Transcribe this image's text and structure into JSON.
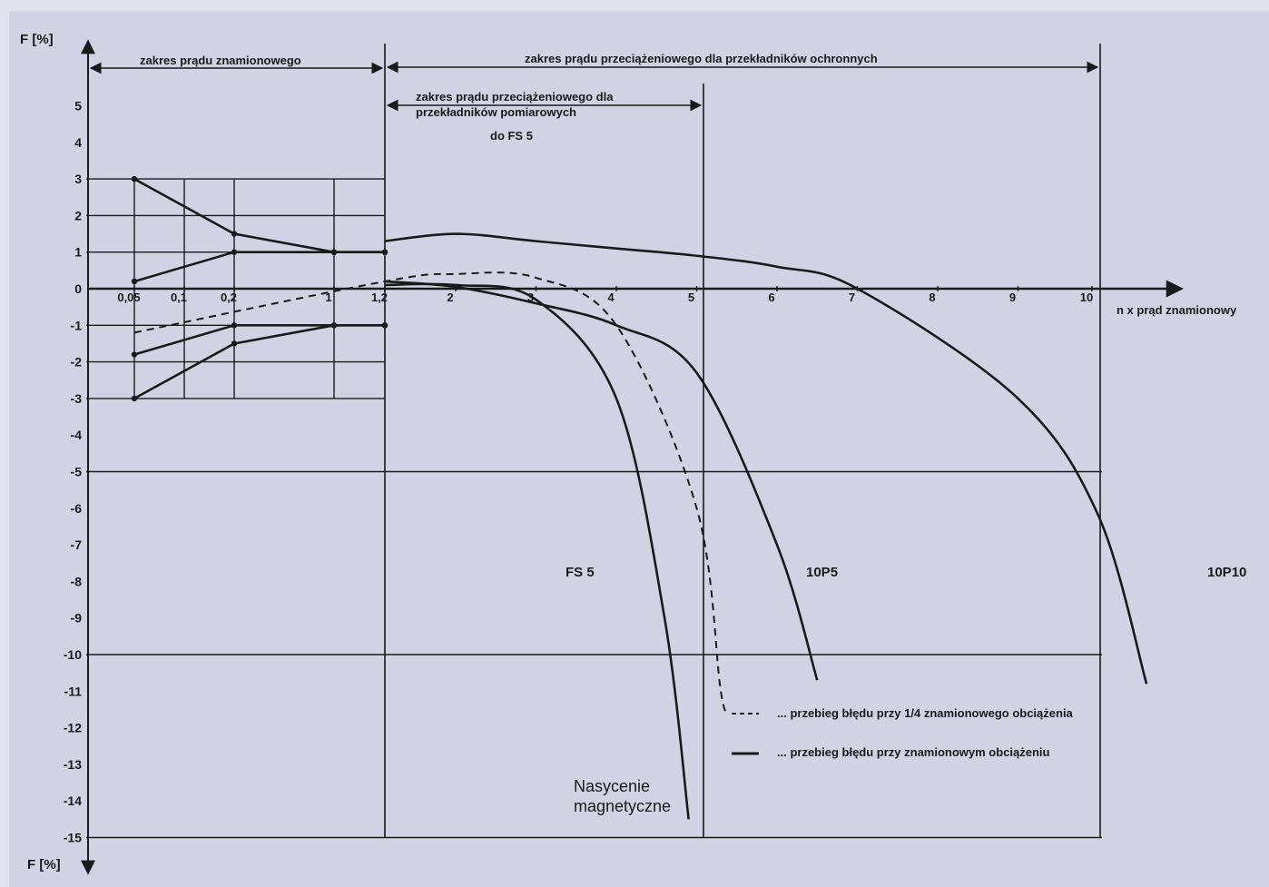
{
  "chart_data": {
    "type": "line",
    "y_axis_label_top": "F [%]",
    "y_axis_label_bottom": "F [%]",
    "x_axis_label": "n x prąd znamionowy",
    "y_ticks": [
      "5",
      "4",
      "3",
      "2",
      "1",
      "0",
      "-1",
      "-2",
      "-3",
      "-4",
      "-5",
      "-6",
      "-7",
      "-8",
      "-9",
      "-10",
      "-11",
      "-12",
      "-13",
      "-14",
      "-15"
    ],
    "x_ticks": [
      "0,05",
      "0,1",
      "0,2",
      "1",
      "1,2",
      "2",
      "3",
      "4",
      "5",
      "6",
      "7",
      "8",
      "9",
      "10"
    ],
    "ranges": {
      "rated": "zakres prądu znamionowego",
      "overload_protective": "zakres prądu przeciążeniowego dla przekładników ochronnych",
      "overload_measuring_line1": "zakres prądu przeciążeniowego dla",
      "overload_measuring_line2": "przekładników pomiarowych",
      "fs5_note": "do FS 5"
    },
    "class_labels": [
      "FS 5",
      "10P5",
      "10P10"
    ],
    "annotation_line1": "Nasycenie",
    "annotation_line2": "magnetyczne",
    "legend": [
      {
        "style": "dashed",
        "label": "... przebieg błędu przy 1/4 znamionowego obciążenia"
      },
      {
        "style": "solid",
        "label": "... przebieg błędu przy znamionowym obciążeniu"
      }
    ],
    "limit_lines_y": [
      3,
      2,
      1,
      -1,
      -2,
      -3,
      -5,
      -10,
      -15
    ],
    "series": [
      {
        "style": "solid",
        "points": [
          [
            0.05,
            3
          ],
          [
            0.2,
            1.5
          ],
          [
            1,
            1
          ],
          [
            1.2,
            1
          ]
        ]
      },
      {
        "style": "solid",
        "points": [
          [
            0.05,
            0.2
          ],
          [
            0.2,
            1
          ],
          [
            1,
            1
          ],
          [
            1.2,
            1
          ]
        ]
      },
      {
        "style": "solid",
        "points": [
          [
            0.05,
            -1.8
          ],
          [
            0.2,
            -1
          ],
          [
            1,
            -1
          ],
          [
            1.2,
            -1
          ]
        ]
      },
      {
        "style": "solid",
        "points": [
          [
            0.05,
            -3
          ],
          [
            0.2,
            -1.5
          ],
          [
            1,
            -1
          ],
          [
            1.2,
            -1
          ]
        ]
      },
      {
        "style": "dashed",
        "points": [
          [
            0.05,
            -1.2
          ],
          [
            1.2,
            0.2
          ],
          [
            2,
            0.4
          ],
          [
            3,
            0.3
          ],
          [
            4,
            -1
          ],
          [
            5,
            -6
          ],
          [
            5.3,
            -11
          ],
          [
            5.4,
            -11.5
          ]
        ]
      },
      {
        "style": "solid",
        "points": [
          [
            1.2,
            0.1
          ],
          [
            2,
            0.1
          ],
          [
            3,
            -0.3
          ],
          [
            4,
            -3
          ],
          [
            4.6,
            -9
          ],
          [
            4.9,
            -14.5
          ]
        ]
      },
      {
        "style": "solid",
        "points": [
          [
            1.2,
            0.2
          ],
          [
            2,
            0.05
          ],
          [
            3,
            -0.4
          ],
          [
            4,
            -1
          ],
          [
            5,
            -2.3
          ],
          [
            6,
            -7
          ],
          [
            6.5,
            -10.7
          ]
        ]
      },
      {
        "style": "solid",
        "points": [
          [
            1.2,
            1.3
          ],
          [
            2,
            1.5
          ],
          [
            3,
            1.3
          ],
          [
            4,
            1.1
          ],
          [
            5,
            0.9
          ],
          [
            6,
            0.6
          ],
          [
            7,
            0
          ],
          [
            9,
            -3
          ],
          [
            10,
            -6.2
          ],
          [
            10.6,
            -10.8
          ]
        ]
      }
    ]
  }
}
